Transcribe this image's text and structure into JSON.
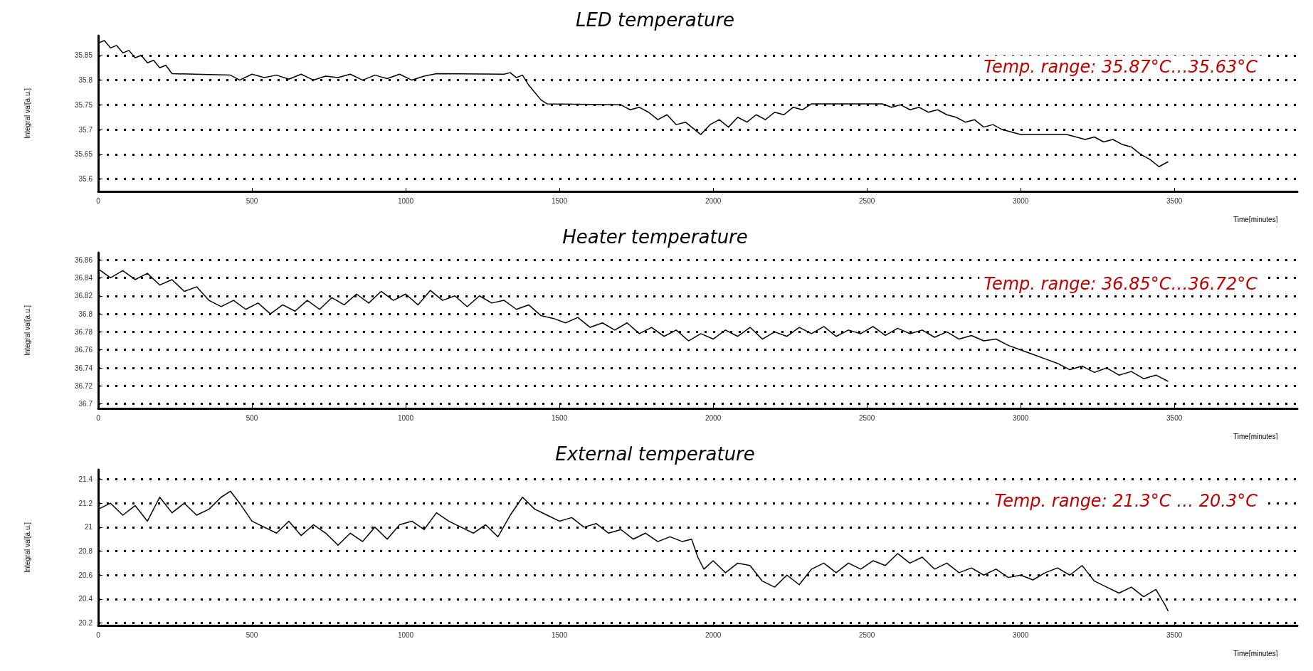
{
  "chart_data": [
    {
      "type": "line",
      "title": "LED temperature",
      "xlabel": "Time[minutes]",
      "ylabel": "Integral val[a.u.]",
      "color": "#000000",
      "grid": "y",
      "line_style": "solid",
      "xlim": [
        0,
        3900
      ],
      "xticks": [
        0,
        500,
        1000,
        1500,
        2000,
        2500,
        3000,
        3500
      ],
      "ylim": [
        35.575,
        35.89
      ],
      "yticks": [
        35.6,
        35.65,
        35.7,
        35.75,
        35.8,
        35.85
      ],
      "annotations": [
        "Temp. range: 35.87°C…35.63°C"
      ],
      "x": [
        0,
        20,
        40,
        60,
        80,
        100,
        120,
        140,
        160,
        180,
        200,
        220,
        240,
        430,
        460,
        500,
        540,
        580,
        620,
        660,
        700,
        740,
        780,
        820,
        860,
        900,
        940,
        980,
        1020,
        1060,
        1100,
        1320,
        1340,
        1360,
        1380,
        1400,
        1420,
        1440,
        1460,
        1700,
        1730,
        1760,
        1790,
        1820,
        1850,
        1880,
        1910,
        1940,
        1960,
        1990,
        2020,
        2050,
        2080,
        2110,
        2140,
        2170,
        2200,
        2230,
        2260,
        2290,
        2320,
        2550,
        2580,
        2610,
        2640,
        2670,
        2700,
        2730,
        2760,
        2790,
        2820,
        2850,
        2880,
        2910,
        2940,
        2970,
        3000,
        3150,
        3180,
        3210,
        3240,
        3270,
        3300,
        3330,
        3360,
        3390,
        3420,
        3450,
        3480
      ],
      "values": [
        35.875,
        35.88,
        35.865,
        35.87,
        35.855,
        35.86,
        35.845,
        35.85,
        35.835,
        35.84,
        35.825,
        35.83,
        35.813,
        35.81,
        35.8,
        35.812,
        35.805,
        35.81,
        35.802,
        35.812,
        35.8,
        35.808,
        35.805,
        35.812,
        35.8,
        35.81,
        35.803,
        35.812,
        35.8,
        35.808,
        35.813,
        35.812,
        35.815,
        35.805,
        35.81,
        35.79,
        35.775,
        35.76,
        35.752,
        35.75,
        35.74,
        35.745,
        35.735,
        35.72,
        35.73,
        35.71,
        35.715,
        35.7,
        35.69,
        35.71,
        35.72,
        35.705,
        35.725,
        35.715,
        35.73,
        35.72,
        35.735,
        35.73,
        35.745,
        35.74,
        35.752,
        35.752,
        35.745,
        35.75,
        35.74,
        35.745,
        35.735,
        35.74,
        35.73,
        35.725,
        35.715,
        35.72,
        35.705,
        35.71,
        35.7,
        35.695,
        35.69,
        35.69,
        35.685,
        35.68,
        35.685,
        35.675,
        35.68,
        35.67,
        35.665,
        35.65,
        35.64,
        35.625,
        35.635
      ]
    },
    {
      "type": "line",
      "title": "Heater temperature",
      "xlabel": "Time[minutes]",
      "ylabel": "Integral val[a.u.]",
      "color": "#000000",
      "grid": "y",
      "line_style": "solid",
      "xlim": [
        0,
        3900
      ],
      "xticks": [
        0,
        500,
        1000,
        1500,
        2000,
        2500,
        3000,
        3500
      ],
      "ylim": [
        36.695,
        36.868
      ],
      "yticks": [
        36.7,
        36.72,
        36.74,
        36.76,
        36.78,
        36.8,
        36.82,
        36.84,
        36.86
      ],
      "annotations": [
        "Temp. range: 36.85°C…36.72°C"
      ],
      "x": [
        0,
        40,
        80,
        120,
        160,
        200,
        240,
        280,
        320,
        360,
        400,
        440,
        480,
        520,
        560,
        600,
        640,
        680,
        720,
        760,
        800,
        840,
        880,
        920,
        960,
        1000,
        1040,
        1080,
        1120,
        1160,
        1200,
        1240,
        1280,
        1320,
        1360,
        1400,
        1440,
        1480,
        1520,
        1560,
        1600,
        1640,
        1680,
        1720,
        1760,
        1800,
        1840,
        1880,
        1920,
        1960,
        2000,
        2040,
        2080,
        2120,
        2160,
        2200,
        2240,
        2280,
        2320,
        2360,
        2400,
        2440,
        2480,
        2520,
        2560,
        2600,
        2640,
        2680,
        2720,
        2760,
        2800,
        2840,
        2880,
        2920,
        2960,
        3000,
        3040,
        3080,
        3120,
        3160,
        3200,
        3240,
        3280,
        3320,
        3360,
        3400,
        3440,
        3480
      ],
      "values": [
        36.85,
        36.84,
        36.848,
        36.838,
        36.845,
        36.832,
        36.838,
        36.825,
        36.83,
        36.815,
        36.808,
        36.815,
        36.805,
        36.812,
        36.8,
        36.81,
        36.803,
        36.815,
        36.805,
        36.818,
        36.81,
        36.822,
        36.812,
        36.825,
        36.815,
        36.822,
        36.81,
        36.826,
        36.815,
        36.82,
        36.808,
        36.82,
        36.812,
        36.815,
        36.805,
        36.81,
        36.798,
        36.795,
        36.79,
        36.796,
        36.785,
        36.79,
        36.782,
        36.79,
        36.778,
        36.785,
        36.775,
        36.782,
        36.77,
        36.778,
        36.772,
        36.782,
        36.775,
        36.785,
        36.772,
        36.78,
        36.775,
        36.785,
        36.778,
        36.786,
        36.775,
        36.782,
        36.778,
        36.786,
        36.776,
        36.784,
        36.778,
        36.782,
        36.774,
        36.78,
        36.772,
        36.776,
        36.77,
        36.772,
        36.765,
        36.76,
        36.755,
        36.75,
        36.745,
        36.738,
        36.742,
        36.735,
        36.74,
        36.732,
        36.736,
        36.728,
        36.732,
        36.725
      ]
    },
    {
      "type": "line",
      "title": "External temperature",
      "xlabel": "Time[minutes]",
      "ylabel": "Integral val[a.u.]",
      "color": "#000000",
      "grid": "y",
      "line_style": "solid",
      "xlim": [
        0,
        3900
      ],
      "xticks": [
        0,
        500,
        1000,
        1500,
        2000,
        2500,
        3000,
        3500
      ],
      "ylim": [
        20.18,
        21.48
      ],
      "yticks": [
        20.2,
        20.4,
        20.6,
        20.8,
        21,
        21.2,
        21.4
      ],
      "annotations": [
        "Temp. range: 21.3°C … 20.3°C"
      ],
      "x": [
        0,
        40,
        80,
        120,
        160,
        200,
        240,
        280,
        320,
        360,
        400,
        430,
        460,
        500,
        540,
        580,
        620,
        660,
        700,
        740,
        780,
        820,
        860,
        900,
        940,
        980,
        1020,
        1060,
        1100,
        1140,
        1180,
        1220,
        1260,
        1300,
        1340,
        1380,
        1420,
        1460,
        1500,
        1540,
        1580,
        1620,
        1660,
        1700,
        1740,
        1780,
        1820,
        1860,
        1900,
        1930,
        1950,
        1970,
        2000,
        2040,
        2080,
        2120,
        2160,
        2200,
        2240,
        2280,
        2320,
        2360,
        2400,
        2440,
        2480,
        2520,
        2560,
        2600,
        2640,
        2680,
        2720,
        2760,
        2800,
        2840,
        2880,
        2920,
        2960,
        3000,
        3040,
        3080,
        3120,
        3160,
        3200,
        3240,
        3280,
        3320,
        3360,
        3400,
        3440,
        3470,
        3480
      ],
      "values": [
        21.15,
        21.2,
        21.1,
        21.18,
        21.05,
        21.25,
        21.12,
        21.2,
        21.1,
        21.15,
        21.25,
        21.3,
        21.2,
        21.05,
        21.0,
        20.95,
        21.05,
        20.93,
        21.02,
        20.95,
        20.85,
        20.95,
        20.88,
        21.0,
        20.9,
        21.02,
        21.05,
        20.98,
        21.12,
        21.05,
        21.0,
        20.95,
        21.02,
        20.92,
        21.1,
        21.25,
        21.15,
        21.1,
        21.05,
        21.08,
        21.0,
        21.03,
        20.95,
        20.98,
        20.9,
        20.95,
        20.88,
        20.92,
        20.88,
        20.9,
        20.75,
        20.65,
        20.72,
        20.62,
        20.7,
        20.68,
        20.55,
        20.5,
        20.6,
        20.52,
        20.65,
        20.7,
        20.62,
        20.7,
        20.65,
        20.72,
        20.68,
        20.78,
        20.7,
        20.75,
        20.65,
        20.7,
        20.62,
        20.66,
        20.6,
        20.65,
        20.58,
        20.6,
        20.56,
        20.62,
        20.66,
        20.6,
        20.68,
        20.55,
        20.5,
        20.45,
        20.5,
        20.42,
        20.48,
        20.35,
        20.3
      ]
    }
  ]
}
